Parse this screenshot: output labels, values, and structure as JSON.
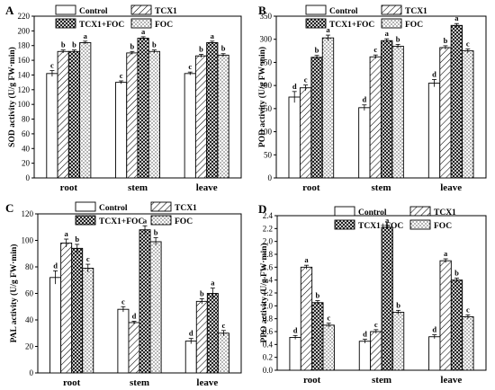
{
  "legend_labels": [
    "Control",
    "TCX1",
    "TCX1+FOC",
    "FOC"
  ],
  "chart_data": [
    {
      "panel": "A",
      "type": "bar",
      "ylabel": "SOD activity (U/g FW·min)",
      "ylim": [
        0,
        220
      ],
      "yticks": [
        0,
        20,
        40,
        60,
        80,
        100,
        120,
        140,
        160,
        180,
        200,
        220
      ],
      "categories": [
        "root",
        "stem",
        "leave"
      ],
      "series": [
        {
          "name": "Control",
          "values": [
            142,
            130,
            142
          ],
          "errors": [
            4,
            2,
            2
          ],
          "sig": [
            "c",
            "c",
            "c"
          ]
        },
        {
          "name": "TCX1",
          "values": [
            172,
            170,
            166
          ],
          "errors": [
            2,
            2,
            2
          ],
          "sig": [
            "b",
            "b",
            "b"
          ]
        },
        {
          "name": "TCX1+FOC",
          "values": [
            172,
            190,
            184
          ],
          "errors": [
            2,
            2,
            2
          ],
          "sig": [
            "b",
            "a",
            "a"
          ]
        },
        {
          "name": "FOC",
          "values": [
            184,
            172,
            167
          ],
          "errors": [
            2,
            2,
            2
          ],
          "sig": [
            "a",
            "b",
            "b"
          ]
        }
      ]
    },
    {
      "panel": "B",
      "type": "bar",
      "ylabel": "POD activity (U/g FW·min)",
      "ylim": [
        0,
        350
      ],
      "yticks": [
        0,
        50,
        100,
        150,
        200,
        250,
        300,
        350
      ],
      "categories": [
        "root",
        "stem",
        "leave"
      ],
      "series": [
        {
          "name": "Control",
          "values": [
            175,
            152,
            205
          ],
          "errors": [
            12,
            6,
            8
          ],
          "sig": [
            "d",
            "d",
            "d"
          ]
        },
        {
          "name": "TCX1",
          "values": [
            195,
            262,
            282
          ],
          "errors": [
            6,
            4,
            4
          ],
          "sig": [
            "c",
            "c",
            "b"
          ]
        },
        {
          "name": "TCX1+FOC",
          "values": [
            261,
            297,
            330
          ],
          "errors": [
            4,
            4,
            4
          ],
          "sig": [
            "b",
            "a",
            "a"
          ]
        },
        {
          "name": "FOC",
          "values": [
            303,
            285,
            275
          ],
          "errors": [
            6,
            4,
            4
          ],
          "sig": [
            "a",
            "b",
            "c"
          ]
        }
      ]
    },
    {
      "panel": "C",
      "type": "bar",
      "ylabel": "PAL activity (U/g FW·min)",
      "ylim": [
        0,
        120
      ],
      "yticks": [
        0,
        20,
        40,
        60,
        80,
        100,
        120
      ],
      "categories": [
        "root",
        "stem",
        "leave"
      ],
      "series": [
        {
          "name": "Control",
          "values": [
            72,
            48,
            24
          ],
          "errors": [
            5,
            2,
            2
          ],
          "sig": [
            "d",
            "c",
            "d"
          ]
        },
        {
          "name": "TCX1",
          "values": [
            98,
            38,
            54
          ],
          "errors": [
            3,
            1,
            2
          ],
          "sig": [
            "a",
            "d",
            "b"
          ]
        },
        {
          "name": "TCX1+FOC",
          "values": [
            94,
            108,
            60
          ],
          "errors": [
            3,
            3,
            4
          ],
          "sig": [
            "b",
            "a",
            "a"
          ]
        },
        {
          "name": "FOC",
          "values": [
            79,
            99,
            30
          ],
          "errors": [
            3,
            3,
            2
          ],
          "sig": [
            "c",
            "b",
            "c"
          ]
        }
      ]
    },
    {
      "panel": "D",
      "type": "bar",
      "ylabel": "PPO activity (U/g FW·min)",
      "ylim": [
        0,
        2.4
      ],
      "yticks": [
        0.0,
        0.2,
        0.4,
        0.6,
        0.8,
        1.0,
        1.2,
        1.4,
        1.6,
        1.8,
        2.0,
        2.2,
        2.4
      ],
      "categories": [
        "root",
        "stem",
        "leave"
      ],
      "series": [
        {
          "name": "Control",
          "values": [
            0.51,
            0.45,
            0.52
          ],
          "errors": [
            0.03,
            0.03,
            0.03
          ],
          "sig": [
            "d",
            "d",
            "d"
          ]
        },
        {
          "name": "TCX1",
          "values": [
            1.6,
            0.6,
            1.7
          ],
          "errors": [
            0.03,
            0.03,
            0.03
          ],
          "sig": [
            "a",
            "c",
            "a"
          ]
        },
        {
          "name": "TCX1+FOC",
          "values": [
            1.05,
            2.22,
            1.4
          ],
          "errors": [
            0.03,
            0.03,
            0.03
          ],
          "sig": [
            "b",
            "a",
            "b"
          ]
        },
        {
          "name": "FOC",
          "values": [
            0.7,
            0.9,
            0.83
          ],
          "errors": [
            0.03,
            0.03,
            0.03
          ],
          "sig": [
            "c",
            "b",
            "c"
          ]
        }
      ]
    }
  ]
}
